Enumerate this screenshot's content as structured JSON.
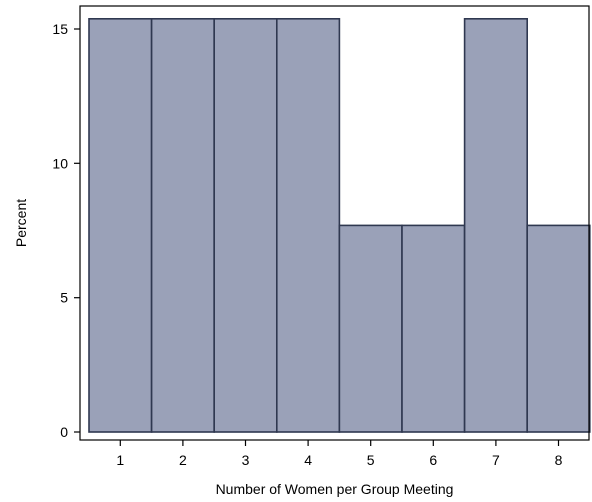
{
  "chart_data": {
    "type": "bar",
    "categories": [
      "1",
      "2",
      "3",
      "4",
      "5",
      "6",
      "7",
      "8"
    ],
    "values": [
      15.38,
      15.38,
      15.38,
      15.38,
      7.69,
      7.69,
      15.38,
      7.69
    ],
    "xlabel": "Number of Women per Group Meeting",
    "ylabel": "Percent",
    "x_ticks": [
      "1",
      "2",
      "3",
      "4",
      "5",
      "6",
      "7",
      "8"
    ],
    "y_ticks": [
      "0",
      "5",
      "10",
      "15"
    ],
    "ylim": [
      0,
      16
    ],
    "grid": false,
    "legend": "none",
    "colors": {
      "bar_fill": "#9aa1b8",
      "bar_stroke": "#2f3850",
      "axis": "#000000",
      "background": "#ffffff"
    }
  }
}
